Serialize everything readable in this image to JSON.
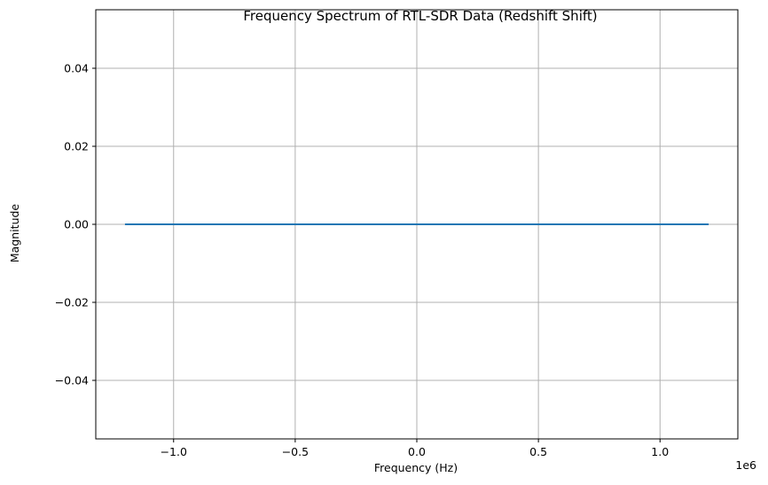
{
  "chart_data": {
    "type": "line",
    "title": "Frequency Spectrum of RTL-SDR Data (Redshift Shift)",
    "xlabel": "Frequency (Hz)",
    "ylabel": "Magnitude",
    "x_offset_text": "1e6",
    "xlim": [
      -1.32,
      1.32
    ],
    "ylim": [
      -0.055,
      0.055
    ],
    "x_scale_factor": 1000000,
    "xticks": [
      -1.0,
      -0.5,
      0.0,
      0.5,
      1.0
    ],
    "xtick_labels": [
      "−1.0",
      "−0.5",
      "0.0",
      "0.5",
      "1.0"
    ],
    "yticks": [
      -0.04,
      -0.02,
      0.0,
      0.02,
      0.04
    ],
    "ytick_labels": [
      "−0.04",
      "−0.02",
      "0.00",
      "0.02",
      "0.04"
    ],
    "grid": true,
    "legend": "none",
    "series": [
      {
        "color": "#1f77b4",
        "x": [
          -1.2,
          1.2
        ],
        "y": [
          0.0,
          0.0
        ]
      }
    ]
  }
}
